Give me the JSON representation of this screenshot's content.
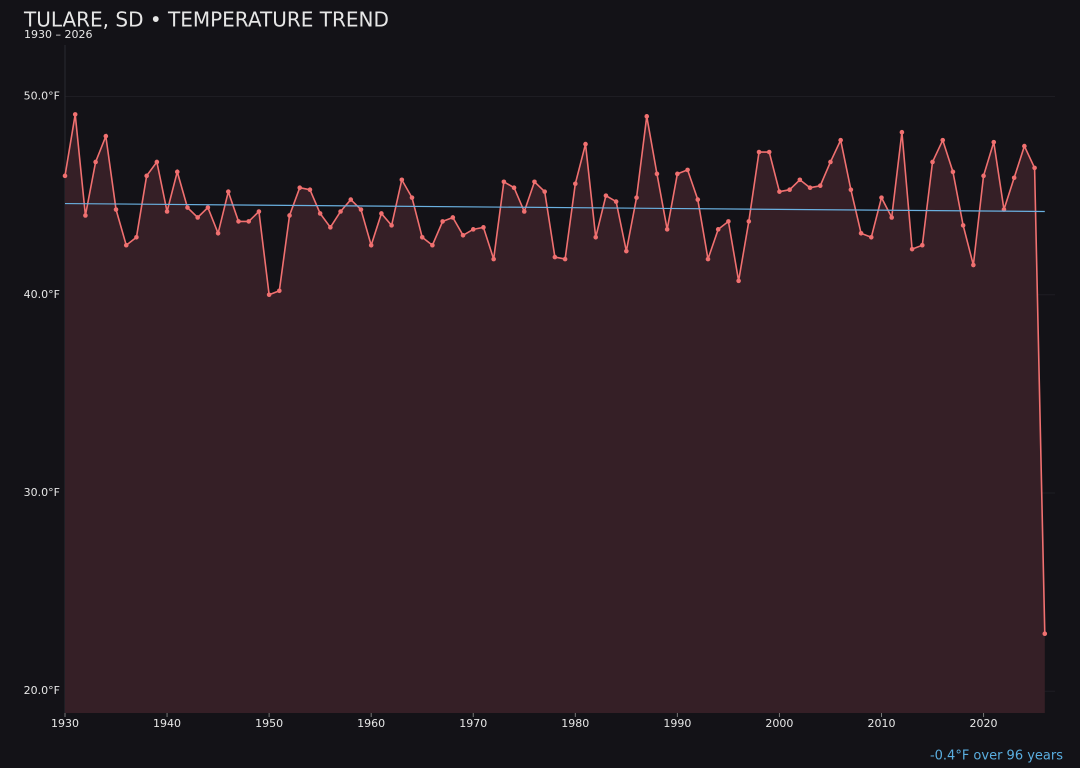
{
  "chart_data": {
    "type": "line",
    "title": "TULARE, SD • TEMPERATURE TREND",
    "subtitle": "1930 – 2026",
    "annotation": "-0.4°F over 96 years",
    "x": [
      1930,
      1931,
      1932,
      1933,
      1934,
      1935,
      1936,
      1937,
      1938,
      1939,
      1940,
      1941,
      1942,
      1943,
      1944,
      1945,
      1946,
      1947,
      1948,
      1949,
      1950,
      1951,
      1952,
      1953,
      1954,
      1955,
      1956,
      1957,
      1958,
      1959,
      1960,
      1961,
      1962,
      1963,
      1964,
      1965,
      1966,
      1967,
      1968,
      1969,
      1970,
      1971,
      1972,
      1973,
      1974,
      1975,
      1976,
      1977,
      1978,
      1979,
      1980,
      1981,
      1982,
      1983,
      1984,
      1985,
      1986,
      1987,
      1988,
      1989,
      1990,
      1991,
      1992,
      1993,
      1994,
      1995,
      1996,
      1997,
      1998,
      1999,
      2000,
      2001,
      2002,
      2003,
      2004,
      2005,
      2006,
      2007,
      2008,
      2009,
      2010,
      2011,
      2012,
      2013,
      2014,
      2015,
      2016,
      2017,
      2018,
      2019,
      2020,
      2021,
      2022,
      2023,
      2024,
      2025,
      2026
    ],
    "series": [
      {
        "color": "#f07070",
        "fill": "#351f26",
        "values": [
          46.0,
          49.1,
          44.0,
          46.7,
          48.0,
          44.3,
          42.5,
          42.9,
          46.0,
          46.7,
          44.2,
          46.2,
          44.4,
          43.9,
          44.4,
          43.1,
          45.2,
          43.7,
          43.7,
          44.2,
          40.0,
          40.2,
          44.0,
          45.4,
          45.3,
          44.1,
          43.4,
          44.2,
          44.8,
          44.3,
          42.5,
          44.1,
          43.5,
          45.8,
          44.9,
          42.9,
          42.5,
          43.7,
          43.9,
          43.0,
          43.3,
          43.4,
          41.8,
          45.7,
          45.4,
          44.2,
          45.7,
          45.2,
          41.9,
          41.8,
          45.6,
          47.6,
          42.9,
          45.0,
          44.7,
          42.2,
          44.9,
          49.0,
          46.1,
          43.3,
          46.1,
          46.3,
          44.8,
          41.8,
          43.3,
          43.7,
          40.7,
          43.7,
          47.2,
          47.2,
          45.2,
          45.3,
          45.8,
          45.4,
          45.5,
          46.7,
          47.8,
          45.3,
          43.1,
          42.9,
          44.9,
          43.9,
          48.2,
          42.3,
          42.5,
          46.7,
          47.8,
          46.2,
          43.5,
          41.5,
          46.0,
          47.7,
          44.3,
          45.9,
          47.5,
          46.4,
          22.9
        ]
      }
    ],
    "trend": {
      "x": [
        1930,
        2026
      ],
      "values": [
        44.6,
        44.2
      ],
      "color": "#6ab0e0"
    },
    "xlim": [
      1930,
      2027
    ],
    "ylim": [
      18.9,
      52.6
    ],
    "xticks": [
      1930,
      1940,
      1950,
      1960,
      1970,
      1980,
      1990,
      2000,
      2010,
      2020
    ],
    "yticks": [
      {
        "value": 20,
        "label": "20.0°F"
      },
      {
        "value": 30,
        "label": "30.0°F"
      },
      {
        "value": 40,
        "label": "40.0°F"
      },
      {
        "value": 50,
        "label": "50.0°F"
      }
    ],
    "grid": true
  }
}
